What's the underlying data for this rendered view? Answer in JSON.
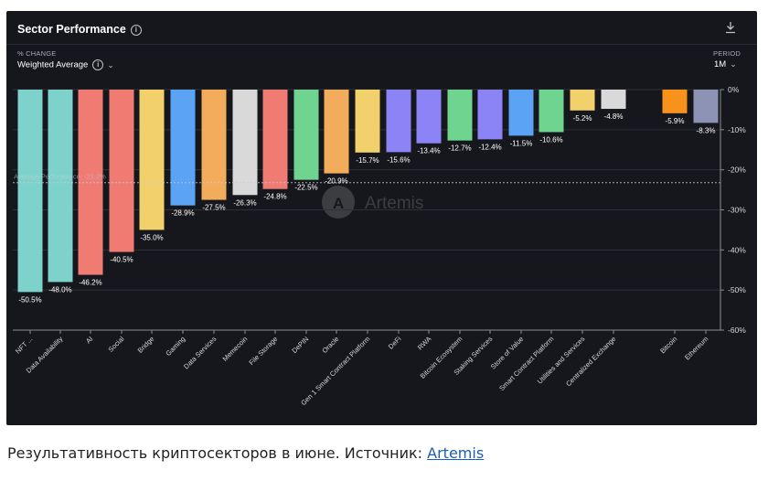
{
  "header": {
    "title": "Sector Performance",
    "metric_label": "% CHANGE",
    "metric_value": "Weighted Average",
    "period_label": "PERIOD",
    "period_value": "1M"
  },
  "watermark": "Artemis",
  "caption": {
    "text": "Результативность криптосекторов в июне. Источник: ",
    "link": "Artemis"
  },
  "colors": {
    "background": "#16171c",
    "teal": "#7dd3cb",
    "red": "#ef7b73",
    "yellow": "#f2d06b",
    "blue": "#5ba3f5",
    "orange": "#f2ac5c",
    "gray": "#d9d9d9",
    "green": "#6fd48f",
    "purple": "#8b83f6",
    "bitcoin": "#f7931a",
    "ethereum": "#8c93b4"
  },
  "chart_data": {
    "type": "bar",
    "categories": [
      "NFT ...",
      "Data Availability",
      "AI",
      "Social",
      "Bridge",
      "Gaming",
      "Data Services",
      "Memecoin",
      "File Storage",
      "DePIN",
      "Oracle",
      "Gen 1 Smart Contract Platform",
      "DeFi",
      "RWA",
      "Bitcoin Ecosystem",
      "Staking Services",
      "Store of Value",
      "Smart Contract Platform",
      "Utilities and Services",
      "Centralized Exchange",
      "Bitcoin",
      "Ethereum"
    ],
    "values": [
      -50.5,
      -48.0,
      -46.2,
      -40.5,
      -35.0,
      -28.9,
      -27.5,
      -26.3,
      -24.8,
      -22.5,
      -20.9,
      -15.7,
      -15.6,
      -13.4,
      -12.7,
      -12.4,
      -11.5,
      -10.6,
      -5.2,
      -4.8,
      -5.9,
      -8.3
    ],
    "data_labels": [
      "-50.5%",
      "-48.0%",
      "-46.2%",
      "-40.5%",
      "-35.0%",
      "-28.9%",
      "-27.5%",
      "-26.3%",
      "-24.8%",
      "-22.5%",
      "-20.9%",
      "-15.7%",
      "-15.6%",
      "-13.4%",
      "-12.7%",
      "-12.4%",
      "-11.5%",
      "-10.6%",
      "-5.2%",
      "-4.8%",
      "-5.9%",
      "-8.3%"
    ],
    "bar_colors": [
      "teal",
      "teal",
      "red",
      "red",
      "yellow",
      "blue",
      "orange",
      "gray",
      "red",
      "green",
      "orange",
      "yellow",
      "purple",
      "purple",
      "green",
      "purple",
      "blue",
      "green",
      "yellow",
      "gray",
      "bitcoin",
      "ethereum"
    ],
    "yticks": [
      0,
      -10,
      -20,
      -30,
      -40,
      -50,
      -60
    ],
    "ytick_labels": [
      "0%",
      "-10%",
      "-20%",
      "-30%",
      "-40%",
      "-50%",
      "-60%"
    ],
    "ylim": [
      -60,
      0
    ],
    "y_axis_position": "right",
    "grid": true,
    "reference_line": {
      "label": "Average Performance: -23.2%",
      "value": -23.2
    },
    "xlabel": "",
    "ylabel": ""
  }
}
